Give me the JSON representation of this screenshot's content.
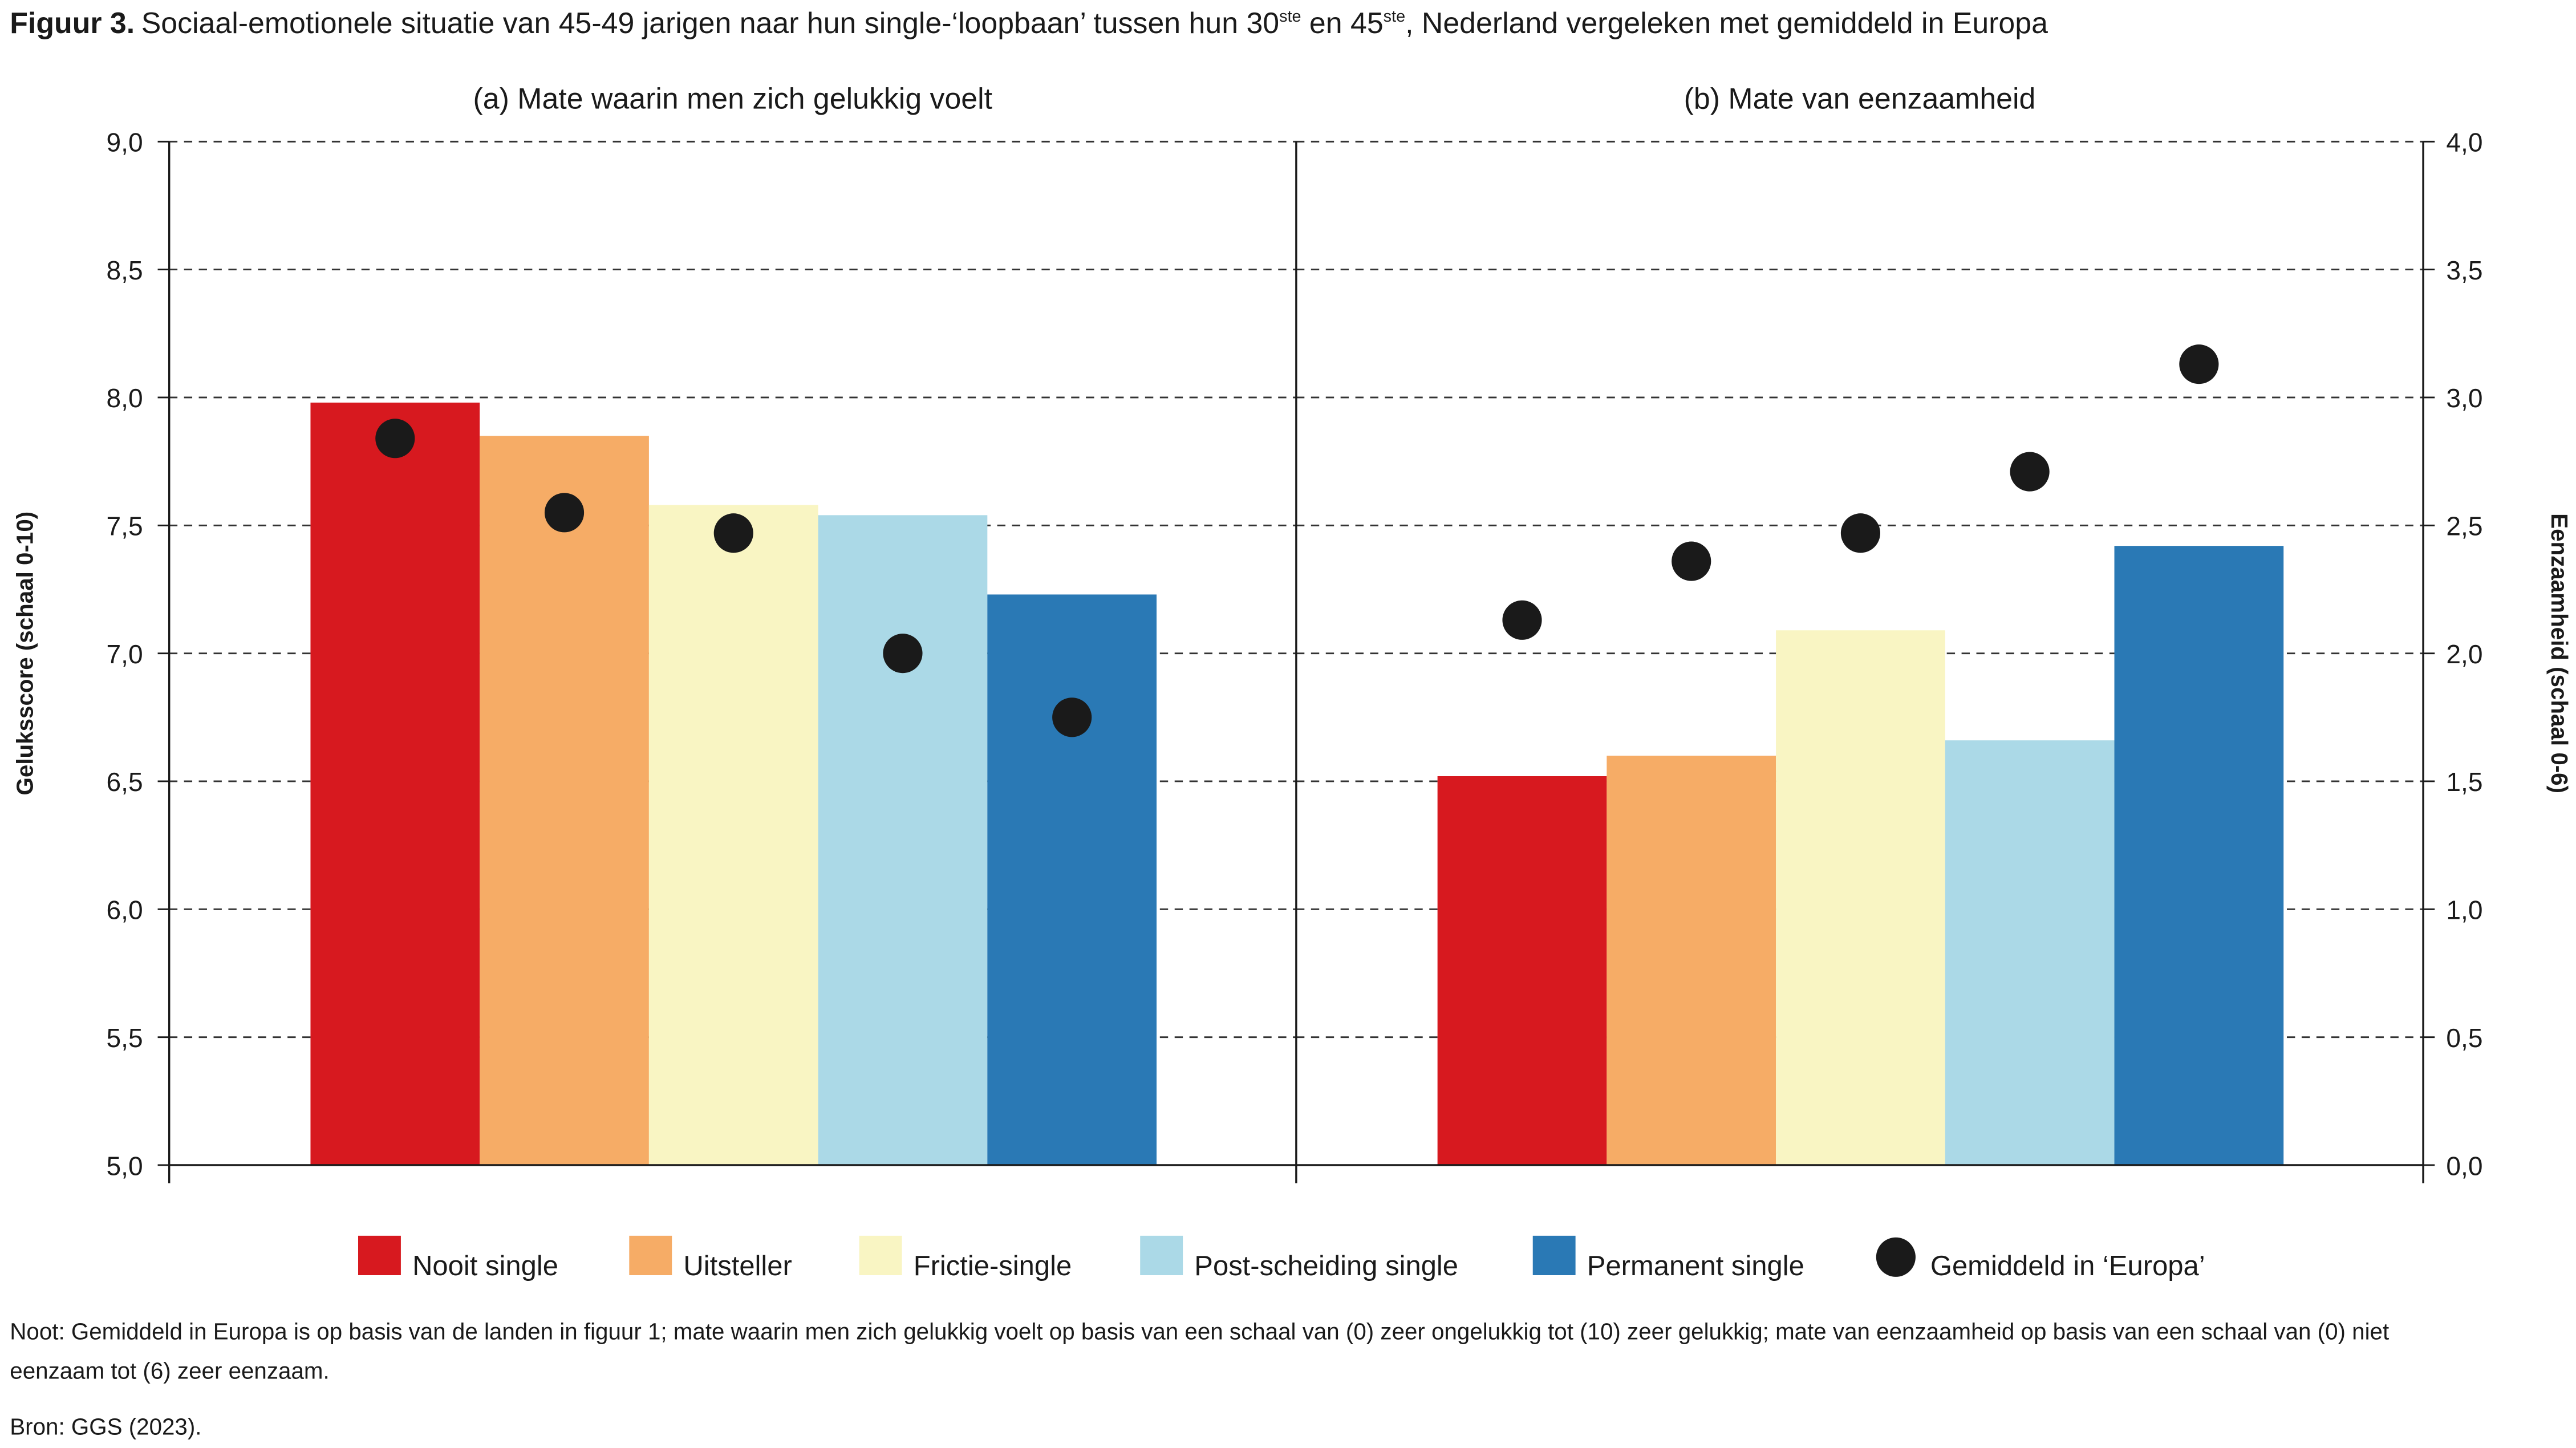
{
  "title_label": "Figuur 3.",
  "title_parts": [
    "Sociaal-emotionele situatie van 45-49 jarigen naar hun single-‘loopbaan’ tussen hun 30",
    "ste",
    " en 45",
    "ste",
    ", Nederland vergeleken met gemiddeld in Europa"
  ],
  "legend": [
    {
      "name": "Nooit single",
      "color": "#d7191f"
    },
    {
      "name": "Uitsteller",
      "color": "#f6ac66"
    },
    {
      "name": "Frictie-single",
      "color": "#f9f5c3"
    },
    {
      "name": "Post-scheiding single",
      "color": "#abd9e7"
    },
    {
      "name": "Permanent single",
      "color": "#2a79b5"
    }
  ],
  "marker_legend": {
    "name": "Gemiddeld in ‘Europa’",
    "color": "#1a1a1a"
  },
  "note": [
    "Noot: Gemiddeld in Europa is op basis van de landen in figuur 1; mate waarin men zich gelukkig voelt op basis van een schaal van (0) zeer ongelukkig tot (10) zeer gelukkig; mate van eenzaamheid op basis van een schaal van (0) niet",
    "eenzaam tot (6) zeer eenzaam."
  ],
  "source": "Bron: GGS (2023).",
  "chart_data": [
    {
      "type": "bar",
      "subtitle": "(a) Mate waarin men zich gelukkig voelt",
      "ylabel": "Geluksscore (schaal 0-10)",
      "axis_side": "left",
      "values": [
        7.98,
        7.85,
        7.58,
        7.54,
        7.23
      ],
      "markers": [
        7.84,
        7.55,
        7.47,
        7.0,
        6.75
      ],
      "ylim": [
        5,
        9
      ],
      "yticks": [
        {
          "value": 5,
          "label": "5,0"
        },
        {
          "value": 5.5,
          "label": "5,5"
        },
        {
          "value": 6,
          "label": "6,0"
        },
        {
          "value": 6.5,
          "label": "6,5"
        },
        {
          "value": 7,
          "label": "7,0"
        },
        {
          "value": 7.5,
          "label": "7,5"
        },
        {
          "value": 8,
          "label": "8,0"
        },
        {
          "value": 8.5,
          "label": "8,5"
        },
        {
          "value": 9,
          "label": "9,0"
        }
      ],
      "grid": true
    },
    {
      "type": "bar",
      "subtitle": "(b) Mate van eenzaamheid",
      "ylabel": "Eenzaamheid (schaal 0-6)",
      "axis_side": "right",
      "values": [
        1.52,
        1.6,
        2.09,
        1.66,
        2.42
      ],
      "markers": [
        2.13,
        2.36,
        2.47,
        2.71,
        3.13
      ],
      "ylim": [
        0,
        4
      ],
      "yticks": [
        {
          "value": 0,
          "label": "0,0"
        },
        {
          "value": 0.5,
          "label": "0,5"
        },
        {
          "value": 1,
          "label": "1,0"
        },
        {
          "value": 1.5,
          "label": "1,5"
        },
        {
          "value": 2,
          "label": "2,0"
        },
        {
          "value": 2.5,
          "label": "2,5"
        },
        {
          "value": 3,
          "label": "3,0"
        },
        {
          "value": 3.5,
          "label": "3,5"
        },
        {
          "value": 4,
          "label": "4,0"
        }
      ],
      "grid": true
    }
  ]
}
